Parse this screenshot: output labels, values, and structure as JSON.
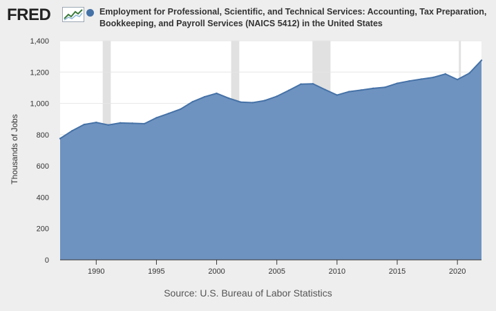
{
  "header": {
    "logo_text": "FRED",
    "logo_icon": "chart-trend-icon",
    "title": "Employment for Professional, Scientific, and Technical Services: Accounting, Tax Preparation, Bookkeeping, and Payroll Services (NAICS 5412) in the United States"
  },
  "source": "Source: U.S. Bureau of Labor Statistics",
  "colors": {
    "series": "#4572a7",
    "series_fill": "#6f93c0",
    "recession": "#e1e1e1",
    "background": "#eeeeee",
    "plot": "#ffffff"
  },
  "chart_data": {
    "type": "area",
    "title": "",
    "xlabel": "",
    "ylabel": "Thousands of Jobs",
    "x": [
      1987,
      1988,
      1989,
      1990,
      1991,
      1992,
      1993,
      1994,
      1995,
      1996,
      1997,
      1998,
      1999,
      2000,
      2001,
      2002,
      2003,
      2004,
      2005,
      2006,
      2007,
      2008,
      2009,
      2010,
      2011,
      2012,
      2013,
      2014,
      2015,
      2016,
      2017,
      2018,
      2019,
      2020,
      2021,
      2022
    ],
    "series": [
      {
        "name": "",
        "values": [
          775,
          825,
          865,
          878,
          862,
          875,
          873,
          870,
          908,
          935,
          963,
          1010,
          1042,
          1064,
          1033,
          1008,
          1005,
          1018,
          1045,
          1083,
          1123,
          1125,
          1088,
          1053,
          1075,
          1085,
          1096,
          1103,
          1128,
          1143,
          1155,
          1166,
          1188,
          1152,
          1193,
          1275
        ]
      }
    ],
    "xlim": [
      1987,
      2022
    ],
    "ylim": [
      0,
      1400
    ],
    "xticks": [
      "1990",
      "1995",
      "2000",
      "2005",
      "2010",
      "2015",
      "2020"
    ],
    "yticks": [
      "0",
      "200",
      "400",
      "600",
      "800",
      "1,000",
      "1,200",
      "1,400"
    ],
    "recessions": [
      [
        1990.54,
        1991.21
      ],
      [
        2001.21,
        2001.88
      ],
      [
        2007.96,
        2009.46
      ],
      [
        2020.12,
        2020.29
      ]
    ],
    "grid": true,
    "legend": "top"
  }
}
